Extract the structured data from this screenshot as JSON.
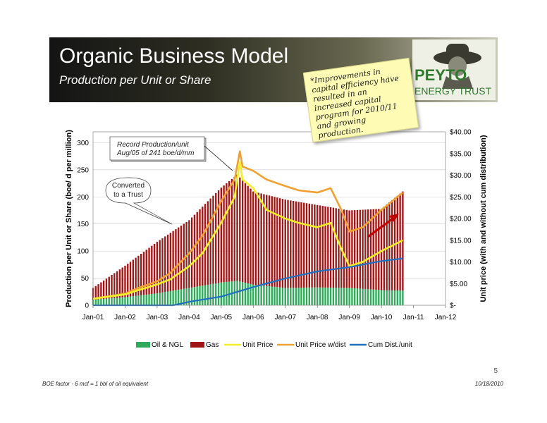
{
  "slide": {
    "title": "Organic Business Model",
    "subtitle": "Production per Unit or Share",
    "logo_line1": "PEYTO",
    "logo_line2": "ENERGY TRUST",
    "note": "*Improvements in capital efficiency have resulted in an increased capital program for 2010/11 and growing production.",
    "page_number": "5",
    "footer_left": "BOE factor - 6 mcf = 1 bbl of oil equivalent",
    "footer_right": "10/18/2010"
  },
  "chart_data": {
    "type": "bar",
    "title": "",
    "xlabel": "",
    "ylabel": "Production per Unit or Share (boe/ d per million)",
    "y2label": "Unit price (with and without cum distribution)",
    "ylim": [
      0,
      320
    ],
    "y2lim": [
      0,
      40
    ],
    "y_ticks": [
      "0",
      "50",
      "100",
      "150",
      "200",
      "250",
      "300"
    ],
    "y2_ticks": [
      "$-",
      "$5.00",
      "$10.00",
      "$15.00",
      "$20.00",
      "$25.00",
      "$30.00",
      "$35.00",
      "$40.00"
    ],
    "x_ticks": [
      "Jan-01",
      "Jan-02",
      "Jan-03",
      "Jan-04",
      "Jan-05",
      "Jan-06",
      "Jan-07",
      "Jan-08",
      "Jan-09",
      "Jan-10",
      "Jan-11",
      "Jan-12"
    ],
    "xlim": [
      "2001-01",
      "2012-01"
    ],
    "grid": true,
    "legend_position": "bottom",
    "colors": {
      "oil": "#2eaa5a",
      "gas": "#a01515",
      "unit_price": "#f2ee28",
      "unit_price_dist": "#f0a030",
      "cum_dist": "#1e6fbf"
    },
    "series": [
      {
        "name": "Oil & NGL",
        "kind": "stacked-bar",
        "axis": "left",
        "x": [
          "2001-01",
          "2002-01",
          "2003-01",
          "2004-01",
          "2005-01",
          "2005-07",
          "2006-01",
          "2007-01",
          "2008-01",
          "2009-01",
          "2010-01",
          "2010-09"
        ],
        "values": [
          10,
          15,
          22,
          32,
          42,
          45,
          38,
          32,
          33,
          32,
          28,
          27
        ]
      },
      {
        "name": "Gas",
        "kind": "stacked-bar",
        "axis": "left",
        "x": [
          "2001-01",
          "2002-01",
          "2003-01",
          "2004-01",
          "2005-01",
          "2005-07",
          "2006-01",
          "2007-01",
          "2008-01",
          "2009-01",
          "2010-01",
          "2010-09"
        ],
        "values": [
          22,
          58,
          95,
          125,
          175,
          196,
          172,
          163,
          152,
          143,
          150,
          183
        ]
      },
      {
        "name": "Unit Price",
        "kind": "line",
        "axis": "right",
        "x": [
          "2001-01",
          "2002-01",
          "2002-06",
          "2003-01",
          "2003-06",
          "2004-01",
          "2004-06",
          "2005-01",
          "2005-06",
          "2005-08",
          "2005-09",
          "2006-01",
          "2006-06",
          "2007-01",
          "2007-06",
          "2008-01",
          "2008-06",
          "2008-10",
          "2009-01",
          "2009-06",
          "2010-01",
          "2010-09"
        ],
        "values": [
          1.5,
          2.5,
          3.5,
          4.8,
          6,
          9,
          12,
          19,
          25,
          33,
          29,
          27,
          22,
          20,
          19,
          18,
          19,
          13,
          9,
          10,
          12.5,
          15
        ]
      },
      {
        "name": "Unit Price w/dist",
        "kind": "line",
        "axis": "right",
        "x": [
          "2001-01",
          "2002-01",
          "2002-06",
          "2003-01",
          "2003-06",
          "2004-01",
          "2004-06",
          "2005-01",
          "2005-06",
          "2005-08",
          "2005-09",
          "2006-01",
          "2006-06",
          "2007-01",
          "2007-06",
          "2008-01",
          "2008-06",
          "2008-10",
          "2009-01",
          "2009-06",
          "2010-01",
          "2010-09"
        ],
        "values": [
          1.5,
          2.7,
          4,
          5.5,
          7.5,
          12,
          16,
          24,
          29,
          35.5,
          32,
          31,
          29,
          27.5,
          26.5,
          26,
          27,
          22,
          17,
          18,
          22,
          26
        ]
      },
      {
        "name": "Cum Dist./unit",
        "kind": "line",
        "axis": "right",
        "x": [
          "2001-01",
          "2003-07",
          "2004-01",
          "2005-01",
          "2006-01",
          "2007-01",
          "2008-01",
          "2009-01",
          "2010-01",
          "2010-09"
        ],
        "values": [
          0,
          0,
          0.8,
          2,
          4.2,
          6.2,
          7.8,
          8.8,
          10.2,
          10.8
        ]
      }
    ],
    "annotations": {
      "record": "Record Production/unit\nAug/05 of 241 boe/d/mm",
      "trust": "Converted\nto a Trust"
    }
  }
}
